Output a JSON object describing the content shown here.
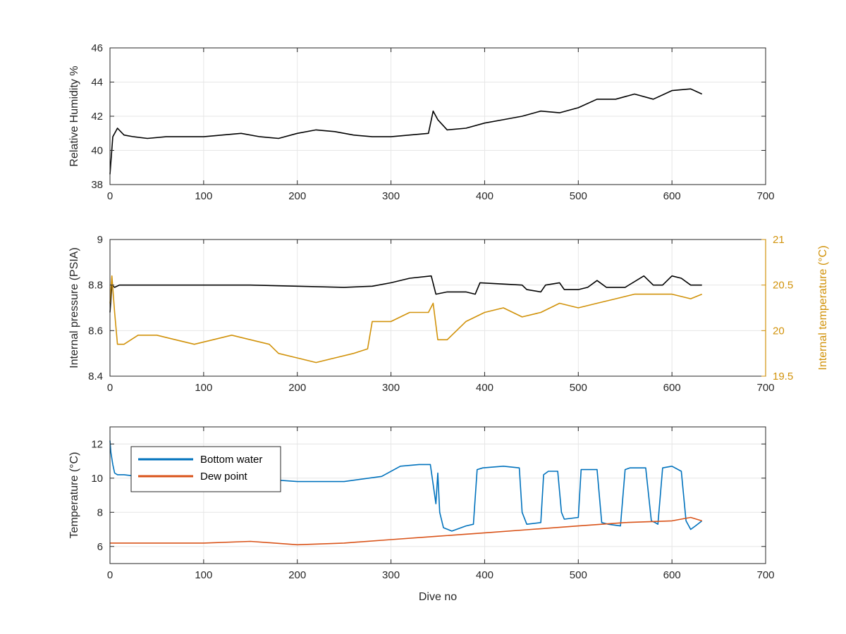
{
  "chart_data": [
    {
      "type": "line",
      "xlabel": "",
      "ylabel": "Relative Humidity %",
      "xlim": [
        0,
        700
      ],
      "ylim": [
        38,
        46
      ],
      "x_ticks": [
        "0",
        "100",
        "200",
        "300",
        "400",
        "500",
        "600",
        "700"
      ],
      "y_ticks": [
        "38",
        "40",
        "42",
        "44",
        "46"
      ],
      "grid": true,
      "series": [
        {
          "color": "#000000",
          "x": [
            0,
            3,
            8,
            15,
            25,
            40,
            60,
            80,
            100,
            120,
            140,
            160,
            180,
            200,
            220,
            240,
            260,
            280,
            300,
            320,
            340,
            345,
            350,
            360,
            380,
            400,
            420,
            440,
            460,
            480,
            500,
            520,
            540,
            560,
            580,
            600,
            620,
            632
          ],
          "y": [
            38.6,
            40.8,
            41.3,
            40.9,
            40.8,
            40.7,
            40.8,
            40.8,
            40.8,
            40.9,
            41.0,
            40.8,
            40.7,
            41.0,
            41.2,
            41.1,
            40.9,
            40.8,
            40.8,
            40.9,
            41.0,
            42.3,
            41.8,
            41.2,
            41.3,
            41.6,
            41.8,
            42.0,
            42.3,
            42.2,
            42.5,
            43.0,
            43.0,
            43.3,
            43.0,
            43.5,
            43.6,
            43.3
          ]
        }
      ]
    },
    {
      "type": "line",
      "xlabel": "",
      "ylabel": "Internal pressure (PSIA)",
      "ylabel_right": "Internal temperature (°C)",
      "xlim": [
        0,
        700
      ],
      "ylim": [
        8.4,
        9
      ],
      "ylim_right": [
        19.5,
        21
      ],
      "x_ticks": [
        "0",
        "100",
        "200",
        "300",
        "400",
        "500",
        "600",
        "700"
      ],
      "y_ticks": [
        "8.4",
        "8.6",
        "8.8",
        "9"
      ],
      "y_ticks_right": [
        "19.5",
        "20",
        "20.5",
        "21"
      ],
      "grid": true,
      "series": [
        {
          "axis": "left",
          "color": "#000000",
          "x": [
            0,
            2,
            5,
            10,
            30,
            60,
            100,
            150,
            200,
            250,
            280,
            300,
            320,
            343,
            348,
            360,
            380,
            390,
            395,
            440,
            445,
            460,
            465,
            480,
            485,
            500,
            510,
            520,
            530,
            540,
            550,
            570,
            580,
            590,
            600,
            610,
            620,
            632
          ],
          "y": [
            8.68,
            8.8,
            8.79,
            8.8,
            8.8,
            8.8,
            8.8,
            8.8,
            8.795,
            8.79,
            8.795,
            8.81,
            8.83,
            8.84,
            8.76,
            8.77,
            8.77,
            8.76,
            8.81,
            8.8,
            8.78,
            8.77,
            8.8,
            8.81,
            8.78,
            8.78,
            8.79,
            8.82,
            8.79,
            8.79,
            8.79,
            8.84,
            8.8,
            8.8,
            8.84,
            8.83,
            8.8,
            8.8
          ]
        },
        {
          "axis": "right",
          "color": "#D1920A",
          "x": [
            0,
            2,
            5,
            8,
            15,
            30,
            50,
            70,
            90,
            110,
            130,
            150,
            170,
            180,
            200,
            220,
            240,
            260,
            275,
            280,
            300,
            320,
            340,
            345,
            350,
            360,
            380,
            400,
            420,
            440,
            460,
            480,
            500,
            520,
            540,
            560,
            580,
            600,
            620,
            632
          ],
          "y": [
            20.3,
            20.6,
            20.2,
            19.85,
            19.85,
            19.95,
            19.95,
            19.9,
            19.85,
            19.9,
            19.95,
            19.9,
            19.85,
            19.75,
            19.7,
            19.65,
            19.7,
            19.75,
            19.8,
            20.1,
            20.1,
            20.2,
            20.2,
            20.3,
            19.9,
            19.9,
            20.1,
            20.2,
            20.25,
            20.15,
            20.2,
            20.3,
            20.25,
            20.3,
            20.35,
            20.4,
            20.4,
            20.4,
            20.35,
            20.4
          ]
        }
      ]
    },
    {
      "type": "line",
      "xlabel": "Dive no",
      "ylabel": "Temperature (°C)",
      "xlim": [
        0,
        700
      ],
      "ylim": [
        5,
        13
      ],
      "x_ticks": [
        "0",
        "100",
        "200",
        "300",
        "400",
        "500",
        "600",
        "700"
      ],
      "y_ticks": [
        "6",
        "8",
        "10",
        "12"
      ],
      "grid": true,
      "legend_location": "top-left",
      "series": [
        {
          "name": "Bottom water",
          "color": "#0072BD",
          "x": [
            0,
            1,
            3,
            5,
            8,
            15,
            30,
            60,
            100,
            150,
            200,
            250,
            290,
            310,
            330,
            342,
            348,
            350,
            352,
            356,
            365,
            380,
            388,
            392,
            398,
            420,
            437,
            440,
            445,
            460,
            463,
            468,
            478,
            482,
            485,
            500,
            503,
            508,
            520,
            525,
            532,
            545,
            550,
            555,
            572,
            578,
            582,
            585,
            590,
            600,
            610,
            615,
            620,
            625,
            632
          ],
          "y": [
            12.2,
            11.5,
            10.8,
            10.3,
            10.2,
            10.2,
            10.1,
            10.0,
            10.0,
            10.0,
            9.8,
            9.8,
            10.1,
            10.7,
            10.8,
            10.8,
            8.5,
            10.3,
            8.0,
            7.1,
            6.9,
            7.2,
            7.3,
            10.5,
            10.6,
            10.7,
            10.6,
            8.0,
            7.3,
            7.4,
            10.2,
            10.4,
            10.4,
            8.0,
            7.6,
            7.7,
            10.5,
            10.5,
            10.5,
            7.4,
            7.3,
            7.2,
            10.5,
            10.6,
            10.6,
            7.5,
            7.4,
            7.3,
            10.6,
            10.7,
            10.4,
            7.5,
            7.0,
            7.2,
            7.5
          ]
        },
        {
          "name": "Dew point",
          "color": "#D95319",
          "x": [
            0,
            50,
            100,
            150,
            200,
            250,
            300,
            350,
            400,
            450,
            500,
            550,
            600,
            620,
            632
          ],
          "y": [
            6.2,
            6.2,
            6.2,
            6.3,
            6.1,
            6.2,
            6.4,
            6.6,
            6.8,
            7.0,
            7.2,
            7.4,
            7.5,
            7.7,
            7.5
          ]
        }
      ]
    }
  ]
}
